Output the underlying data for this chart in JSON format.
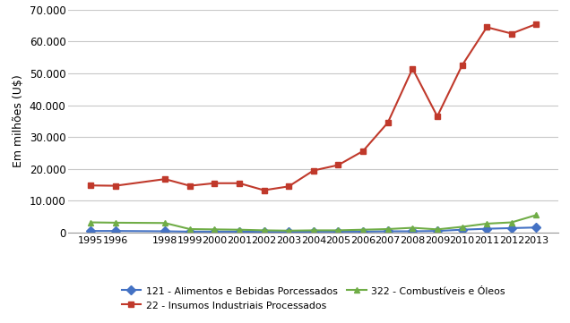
{
  "years": [
    1995,
    1996,
    1998,
    1999,
    2000,
    2001,
    2002,
    2003,
    2004,
    2005,
    2006,
    2007,
    2008,
    2009,
    2010,
    2011,
    2012,
    2013
  ],
  "series": {
    "121": {
      "label": "121 - Alimentos e Bebidas Porcessados",
      "color": "#4472C4",
      "marker": "D",
      "values": [
        500,
        500,
        400,
        300,
        300,
        300,
        200,
        200,
        300,
        300,
        300,
        400,
        400,
        500,
        900,
        1200,
        1400,
        1600
      ]
    },
    "22": {
      "label": "22 - Insumos Industriais Processados",
      "color": "#C0392B",
      "marker": "s",
      "values": [
        14800,
        14700,
        16800,
        14700,
        15500,
        15500,
        13300,
        14500,
        19500,
        21200,
        25600,
        34500,
        51500,
        36500,
        52500,
        64500,
        62500,
        65500
      ]
    },
    "322": {
      "label": "322 - Combustíveis e Óleos",
      "color": "#70AD47",
      "marker": "^",
      "values": [
        3200,
        3100,
        3000,
        1100,
        1000,
        900,
        700,
        600,
        700,
        700,
        900,
        1100,
        1500,
        1000,
        1800,
        2800,
        3200,
        5500
      ]
    }
  },
  "ylabel": "Em milhões (U$)",
  "ylim": [
    0,
    70000
  ],
  "yticks": [
    0,
    10000,
    20000,
    30000,
    40000,
    50000,
    60000,
    70000
  ],
  "background_color": "#FFFFFF",
  "grid_color": "#C8C8C8",
  "linewidth": 1.5,
  "markersize": 5
}
